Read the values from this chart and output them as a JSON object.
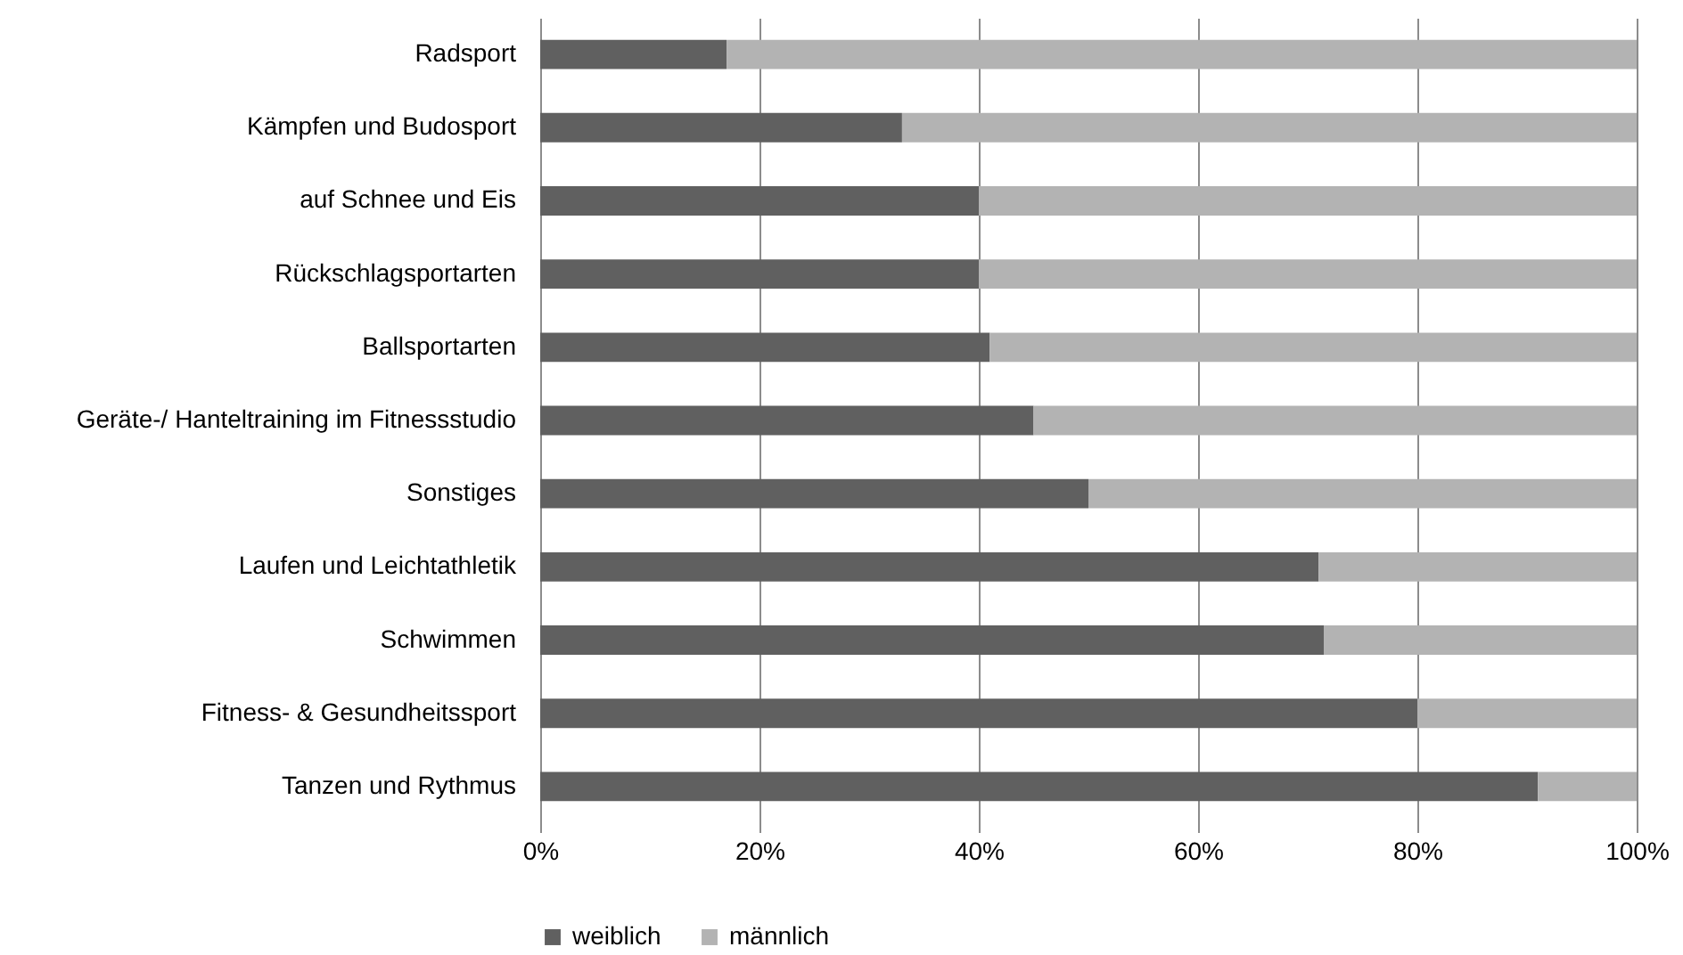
{
  "chart_data": {
    "type": "bar",
    "orientation": "horizontal",
    "stacked": true,
    "categories": [
      "Radsport",
      "Kämpfen und Budosport",
      "auf Schnee und Eis",
      "Rückschlagsportarten",
      "Ballsportarten",
      "Geräte-/ Hanteltraining im Fitnessstudio",
      "Sonstiges",
      "Laufen und Leichtathletik",
      "Schwimmen",
      "Fitness- & Gesundheitssport",
      "Tanzen und Rythmus"
    ],
    "series": [
      {
        "name": "weiblich",
        "color": "#606060",
        "values": [
          17,
          33,
          40,
          40,
          41,
          45,
          50,
          71,
          71.5,
          80,
          91
        ]
      },
      {
        "name": "männlich",
        "color": "#b3b3b3",
        "values": [
          83,
          67,
          60,
          60,
          59,
          55,
          50,
          29,
          28.5,
          20,
          9
        ]
      }
    ],
    "xlim": [
      0,
      100
    ],
    "xticks": [
      {
        "value": 0,
        "label": "0%"
      },
      {
        "value": 20,
        "label": "20%"
      },
      {
        "value": 40,
        "label": "40%"
      },
      {
        "value": 60,
        "label": "60%"
      },
      {
        "value": 80,
        "label": "80%"
      },
      {
        "value": 100,
        "label": "100%"
      }
    ],
    "grid": "x",
    "legend": "bottom"
  }
}
